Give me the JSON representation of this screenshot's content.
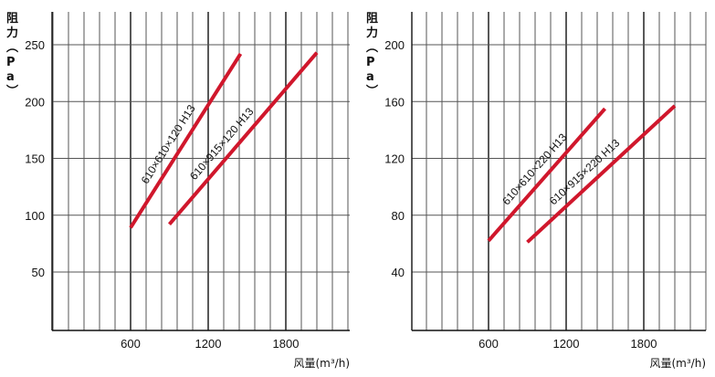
{
  "chart_data": [
    {
      "type": "line",
      "ylabel": "阻力(Pa)",
      "xlabel": "风量(m³/h)",
      "xlim": [
        0,
        2100
      ],
      "ylim": [
        0,
        280
      ],
      "xticks": [
        600,
        1200,
        1800
      ],
      "xtick_labels": [
        "600",
        "1200",
        "1800"
      ],
      "yticks": [
        50,
        100,
        150,
        200,
        250
      ],
      "ytick_labels": [
        "50",
        "100",
        "150",
        "200",
        "250"
      ],
      "minor_x_step": 120,
      "grid": true,
      "colors": {
        "series": "#d0172c",
        "grid": "#555555",
        "major": "#111111"
      },
      "series": [
        {
          "name": "610×610×120 H13",
          "x": [
            600,
            1450
          ],
          "y": [
            89,
            242
          ]
        },
        {
          "name": "610×915×120 H13",
          "x": [
            900,
            2040
          ],
          "y": [
            92,
            243
          ]
        }
      ]
    },
    {
      "type": "line",
      "ylabel": "阻力(Pa)",
      "xlabel": "风量(m³/h)",
      "xlim": [
        -600,
        1700
      ],
      "ylim": [
        0,
        224
      ],
      "xticks": [
        600,
        1200,
        1800
      ],
      "xtick_labels": [
        "600",
        "1200",
        "1800"
      ],
      "yticks": [
        40,
        80,
        120,
        160,
        200
      ],
      "ytick_labels": [
        "40",
        "80",
        "120",
        "160",
        "200"
      ],
      "minor_x_step": 120,
      "grid": true,
      "colors": {
        "series": "#d0172c",
        "grid": "#555555",
        "major": "#111111"
      },
      "series": [
        {
          "name": "610×610×220 H13",
          "x": [
            600,
            1500
          ],
          "y": [
            62,
            155
          ]
        },
        {
          "name": "610×915×220 H13",
          "x": [
            900,
            2040
          ],
          "y": [
            61,
            157
          ]
        }
      ]
    }
  ]
}
